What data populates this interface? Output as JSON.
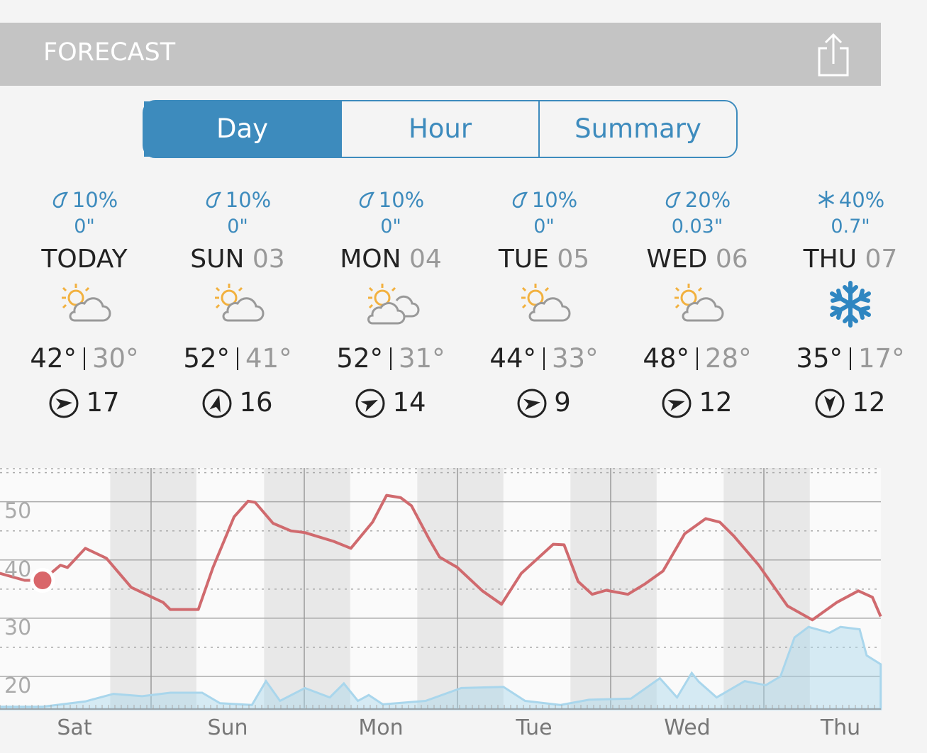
{
  "header": {
    "title": "FORECAST"
  },
  "tabs": [
    "Day",
    "Hour",
    "Summary"
  ],
  "days": [
    {
      "precip": "10%",
      "amount": "0\"",
      "day": "TODAY",
      "hi": "42°",
      "lo": "30°",
      "wind": "17"
    },
    {
      "precip": "10%",
      "amount": "0\"",
      "day": "SUN",
      "date": "03",
      "hi": "52°",
      "lo": "41°",
      "wind": "16"
    },
    {
      "precip": "10%",
      "amount": "0\"",
      "day": "MON",
      "date": "04",
      "hi": "52°",
      "lo": "31°",
      "wind": "14"
    },
    {
      "precip": "10%",
      "amount": "0\"",
      "day": "TUE",
      "date": "05",
      "hi": "44°",
      "lo": "33°",
      "wind": "9"
    },
    {
      "precip": "20%",
      "amount": "0.03\"",
      "day": "WED",
      "date": "06",
      "hi": "48°",
      "lo": "28°",
      "wind": "12"
    },
    {
      "precip": "40%",
      "amount": "0.7\"",
      "day": "THU",
      "date": "07",
      "hi": "35°",
      "lo": "17°",
      "wind": "12"
    }
  ],
  "chart_data": {
    "type": "line",
    "xlim": [
      0,
      138
    ],
    "ylim": [
      14.4,
      55.8
    ],
    "yticks": [
      20,
      30,
      40,
      50
    ],
    "minor_yticks": [
      25,
      35,
      45,
      55
    ],
    "xticks": [
      {
        "value": 12,
        "label": "Sat"
      },
      {
        "value": 36,
        "label": "Sun"
      },
      {
        "value": 60,
        "label": "Mon"
      },
      {
        "value": 84,
        "label": "Tue"
      },
      {
        "value": 108,
        "label": "Wed"
      },
      {
        "value": 132,
        "label": "Thu"
      }
    ],
    "day_lines": [
      24,
      48,
      72,
      96,
      120
    ],
    "night_bands": [
      [
        17.6,
        31.1
      ],
      [
        41.7,
        55.2
      ],
      [
        65.7,
        79.2
      ],
      [
        89.7,
        103.2
      ],
      [
        113.7,
        127.2
      ]
    ],
    "series": [
      {
        "type": "area",
        "color": "#a9d6ec",
        "x": [
          0.3,
          7,
          13.7,
          18.1,
          22.6,
          27,
          32,
          34.8,
          39.8,
          42,
          44.2,
          48.1,
          52,
          54.2,
          56.4,
          58.1,
          60.3,
          67,
          72.6,
          79.2,
          82.6,
          88.1,
          92.6,
          99.2,
          103.7,
          106.4,
          108.7,
          109.8,
          112.6,
          117,
          120.3,
          122.6,
          124.8,
          127,
          130.3,
          132,
          135,
          136.1,
          138.3
        ],
        "values": [
          14.8,
          14.8,
          15.7,
          17,
          16.6,
          17.2,
          17.2,
          15.4,
          15.1,
          19.2,
          15.8,
          18,
          16.4,
          18.8,
          15.8,
          16.8,
          15.2,
          15.8,
          18,
          18.2,
          15.8,
          15.1,
          16,
          16.2,
          19.7,
          16.4,
          20.6,
          19.1,
          16.4,
          19.2,
          18.5,
          20,
          26.7,
          28.5,
          27.5,
          28.5,
          28.1,
          23.6,
          22.1
        ]
      },
      {
        "type": "line",
        "color": "#d06a6e",
        "x": [
          0.3,
          4.2,
          7,
          9.8,
          10.9,
          13.7,
          17,
          20.9,
          25.9,
          27,
          31.4,
          33.7,
          37,
          39.2,
          40.3,
          43.1,
          45.9,
          48.1,
          52.6,
          55.3,
          58.7,
          60.9,
          63.1,
          64.8,
          67.6,
          69.2,
          72,
          75.9,
          78.9,
          82,
          84.8,
          87,
          88.7,
          90.9,
          93.1,
          95.3,
          98.7,
          101.4,
          104.2,
          107.6,
          110.9,
          113.1,
          115.3,
          119.2,
          123.7,
          127.6,
          131.4,
          134.8,
          137,
          138.3
        ],
        "values": [
          37.7,
          36.5,
          36.5,
          39.1,
          38.7,
          42,
          40.3,
          35.3,
          32.7,
          31.5,
          31.5,
          38.7,
          47.4,
          50.1,
          49.9,
          46.3,
          45,
          44.7,
          43.2,
          42,
          46.5,
          51.1,
          50.7,
          49.3,
          43.5,
          40.5,
          38.7,
          34.7,
          32.4,
          37.7,
          40.5,
          42.7,
          42.6,
          36.3,
          34.1,
          34.8,
          34.1,
          35.9,
          38.1,
          44.5,
          47.1,
          46.5,
          44.1,
          39.1,
          32.1,
          29.7,
          32.7,
          34.7,
          33.6,
          30.3
        ]
      }
    ],
    "current": {
      "x": 7,
      "value": 36.5,
      "color": "#d9666a"
    }
  }
}
